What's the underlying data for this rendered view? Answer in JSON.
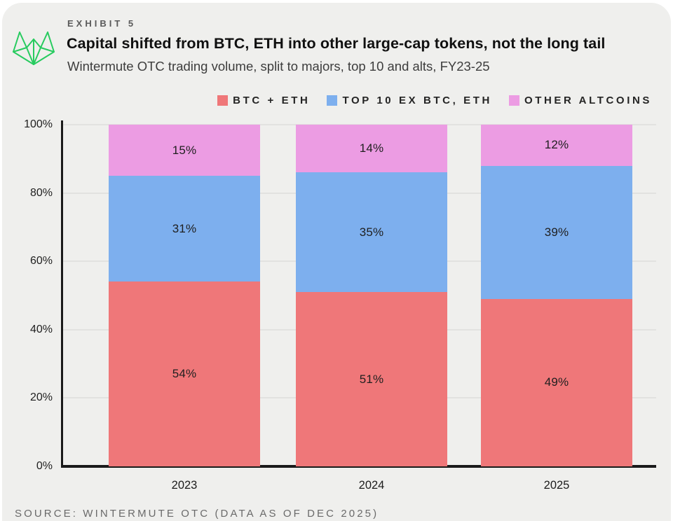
{
  "header": {
    "exhibit_label": "EXHIBIT 5",
    "title": "Capital shifted from BTC, ETH into other large-cap tokens, not the long tail",
    "subtitle": "Wintermute OTC trading volume, split to majors, top 10 and alts, FY23-25"
  },
  "legend": {
    "items": [
      {
        "label": "BTC + ETH",
        "color": "#EF7779"
      },
      {
        "label": "TOP 10 EX BTC, ETH",
        "color": "#7DAFEE"
      },
      {
        "label": "OTHER ALTCOINS",
        "color": "#EC9CE3"
      }
    ]
  },
  "chart_data": {
    "type": "bar",
    "stacked": true,
    "title": "Capital shifted from BTC, ETH into other large-cap tokens, not the long tail",
    "subtitle": "Wintermute OTC trading volume, split to majors, top 10 and alts, FY23-25",
    "categories": [
      "2023",
      "2024",
      "2025"
    ],
    "series": [
      {
        "name": "BTC + ETH",
        "color": "#EF7779",
        "values": [
          54,
          51,
          49
        ]
      },
      {
        "name": "TOP 10 EX BTC, ETH",
        "color": "#7DAFEE",
        "values": [
          31,
          35,
          39
        ]
      },
      {
        "name": "OTHER ALTCOINS",
        "color": "#EC9CE3",
        "values": [
          15,
          14,
          12
        ]
      }
    ],
    "value_suffix": "%",
    "y_axis": {
      "min": 0,
      "max": 100,
      "ticks": [
        0,
        20,
        40,
        60,
        80,
        100
      ],
      "tick_suffix": "%"
    },
    "grid": true,
    "legend_position": "top-right"
  },
  "source": {
    "text": "SOURCE: WINTERMUTE OTC (DATA AS OF DEC 2025)"
  },
  "colors": {
    "background": "#EFEFED",
    "page": "#FFFFFF",
    "axis": "#1A1A1A",
    "gridline": "#E2E2E0",
    "logo_green": "#27CB5F",
    "title_text": "#101010",
    "subtitle_text": "#3D3D3D",
    "muted_text": "#6A6A6A"
  }
}
